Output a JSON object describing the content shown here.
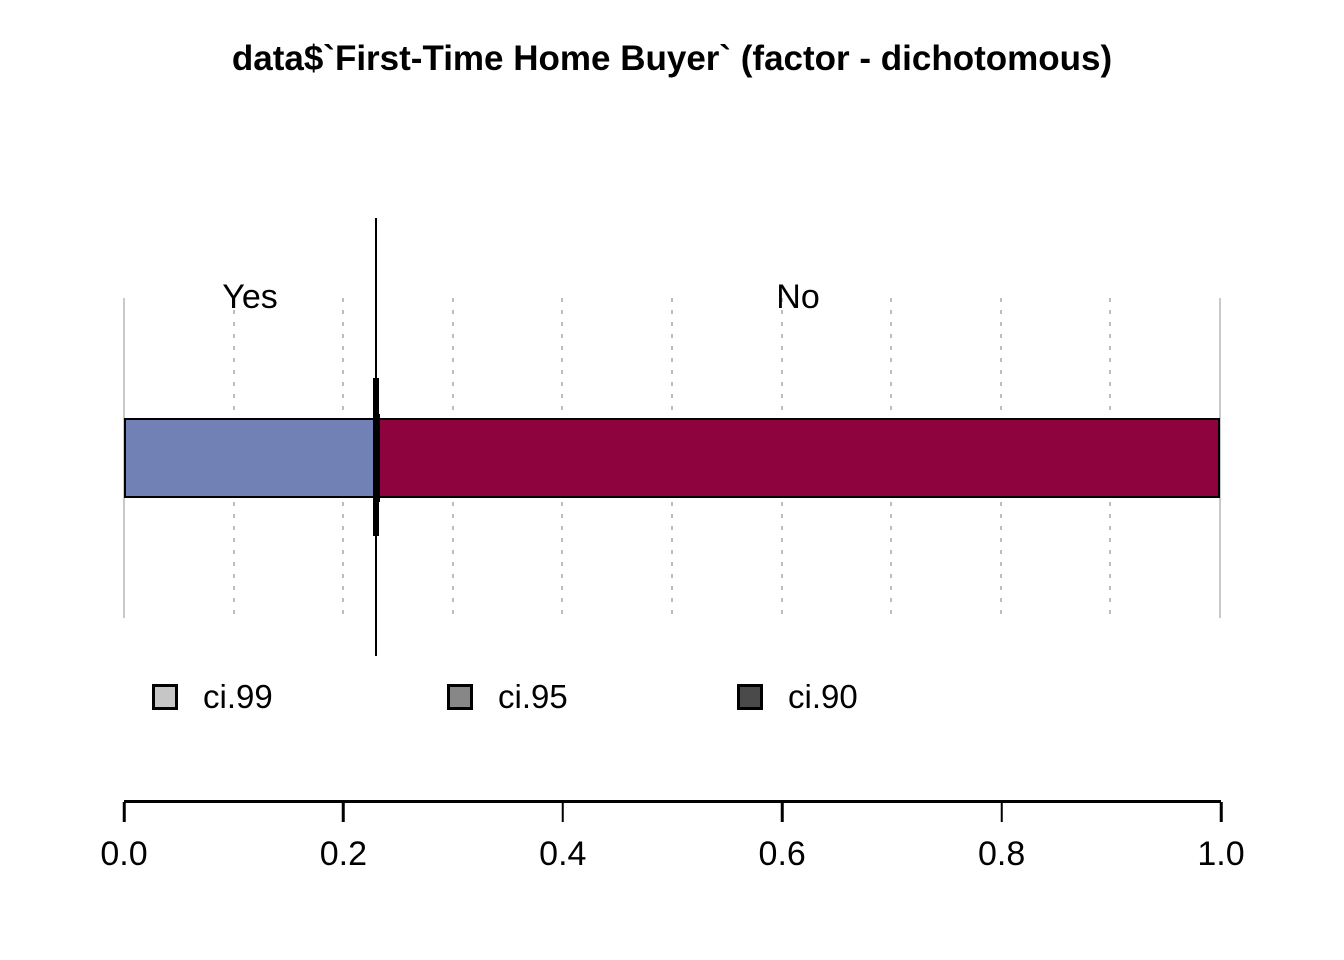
{
  "chart_data": {
    "type": "bar",
    "subtype": "stacked-horizontal-proportion",
    "title": "data$`First-Time Home Buyer` (factor - dichotomous)",
    "categories": [
      "Yes",
      "No"
    ],
    "values": [
      0.23,
      0.77
    ],
    "colors": [
      "#7181b5",
      "#8e023e"
    ],
    "xlim": [
      0.0,
      1.0
    ],
    "x_tick_labels": [
      "0.0",
      "0.2",
      "0.4",
      "0.6",
      "0.8",
      "1.0"
    ],
    "gridline_step": 0.1,
    "grid_style": "dashed-vertical",
    "ci_boundary": 0.23,
    "ci_line_color": "#000000",
    "legend": {
      "position": "below-bar",
      "items": [
        {
          "label": "ci.99",
          "color": "#c6c6c6"
        },
        {
          "label": "ci.95",
          "color": "#878787"
        },
        {
          "label": "ci.90",
          "color": "#4a4a4a"
        }
      ]
    }
  }
}
